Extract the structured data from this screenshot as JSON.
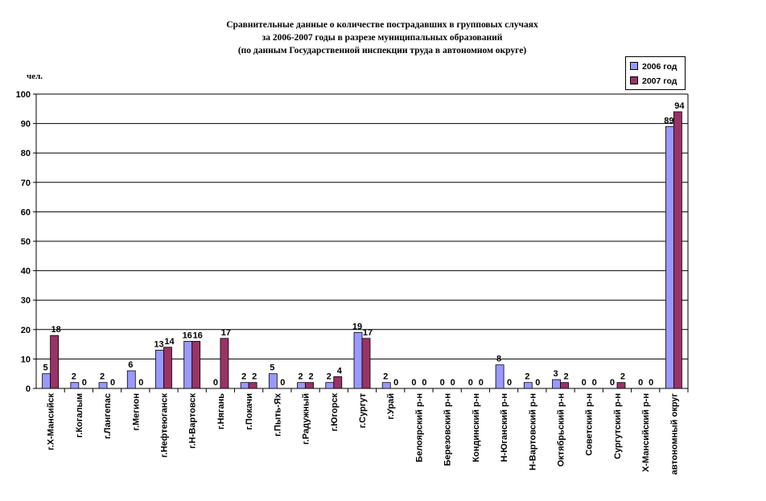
{
  "chart_data": {
    "type": "bar",
    "title": [
      "Сравнительные данные о количестве пострадавших в групповых случаях",
      "за 2006-2007 годы в разрезе муниципальных образований",
      "(по данным Государственной инспекции труда в автономном округе)"
    ],
    "ylabel": "чел.",
    "ylim": [
      0,
      100
    ],
    "yticks": [
      "0",
      "10",
      "20",
      "30",
      "40",
      "50",
      "60",
      "70",
      "80",
      "90",
      "100"
    ],
    "grid": true,
    "legend_position": "top-right",
    "categories": [
      "г.Х-Мансийск",
      "г.Когалым",
      "г.Лангепас",
      "г.Мегион",
      "г.Нефтеюганск",
      "г.Н-Вартовск",
      "г.Нягань",
      "г.Покачи",
      "г.Пыть-Ях",
      "г.Радужный",
      "г.Югорск",
      "г.Сургут",
      "г.Урай",
      "Белоярский р-н",
      "Березовский р-н",
      "Кондинский р-н",
      "Н-Юганский р-н",
      "Н-Вартовский р-н",
      "Октябрьский р-н",
      "Советский р-н",
      "Сургутский р-н",
      "Х-Мансийский р-н",
      "автономный округ"
    ],
    "series": [
      {
        "name": "2006 год",
        "color": "#9999ff",
        "values": [
          5,
          2,
          2,
          6,
          13,
          16,
          0,
          2,
          5,
          2,
          2,
          19,
          2,
          0,
          0,
          0,
          8,
          2,
          3,
          0,
          0,
          0,
          89
        ]
      },
      {
        "name": "2007 год",
        "color": "#993366",
        "values": [
          18,
          0,
          0,
          0,
          14,
          16,
          17,
          2,
          0,
          2,
          4,
          17,
          0,
          0,
          0,
          0,
          0,
          0,
          2,
          0,
          2,
          0,
          94
        ]
      }
    ]
  }
}
